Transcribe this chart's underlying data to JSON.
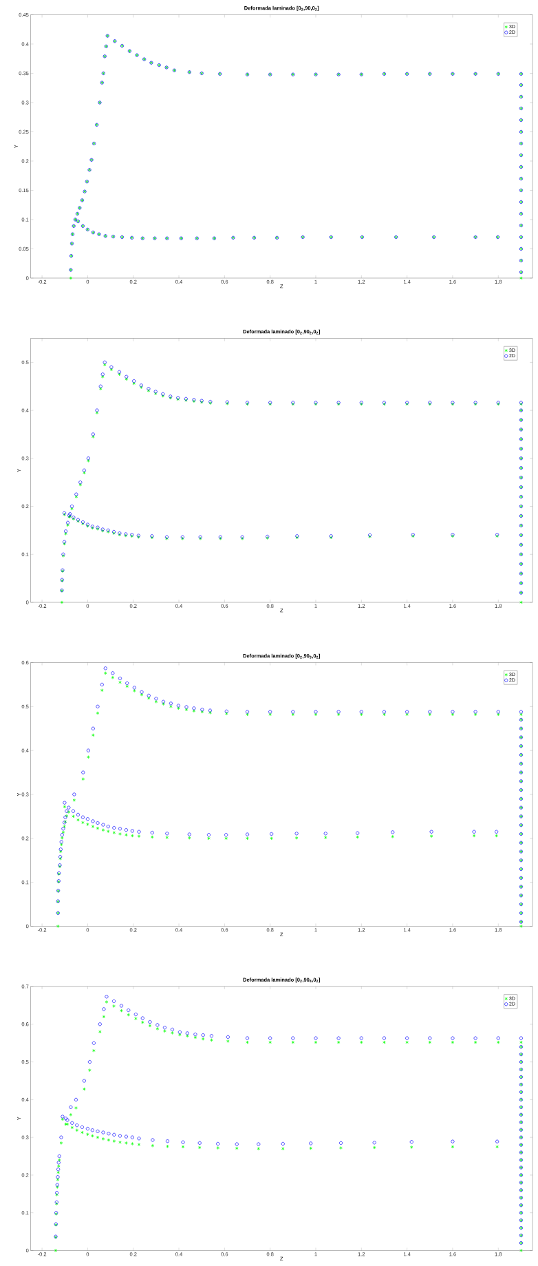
{
  "chart_data": [
    {
      "type": "scatter",
      "title": "Deformada laminado [0$_{2}$,90,0$_{2}$]",
      "xlabel": "Z",
      "ylabel": "Y",
      "legend": "top right",
      "xlim": [
        -0.25,
        1.95
      ],
      "ylim": [
        0,
        0.45
      ],
      "xticks": [
        -0.2,
        0,
        0.2,
        0.4,
        0.6,
        0.8,
        1,
        1.2,
        1.4,
        1.6,
        1.8
      ],
      "yticks": [
        0,
        0.05,
        0.1,
        0.15,
        0.2,
        0.25,
        0.3,
        0.35,
        0.4,
        0.45
      ],
      "x": [
        -0.074,
        -0.074,
        -0.072,
        -0.069,
        -0.066,
        -0.061,
        -0.054,
        -0.045,
        -0.035,
        -0.024,
        -0.013,
        -0.003,
        0.008,
        0.017,
        0.028,
        0.04,
        0.053,
        0.063,
        0.069,
        0.075,
        0.081,
        0.087,
        0.119,
        0.151,
        0.184,
        0.216,
        0.248,
        0.279,
        0.313,
        0.346,
        0.38,
        0.446,
        0.5,
        0.58,
        0.7,
        0.8,
        0.9,
        1,
        1.1,
        1.2,
        1.3,
        1.4,
        1.5,
        1.6,
        1.7,
        1.8,
        1.9,
        1.9,
        1.9,
        1.9,
        1.9,
        1.9,
        1.9,
        1.9,
        1.9,
        1.9,
        1.9,
        1.9,
        1.9,
        1.9,
        1.9,
        1.9,
        1.9,
        1.9,
        1.9,
        -0.042,
        -0.021,
        0,
        0.024,
        0.05,
        0.078,
        0.112,
        0.151,
        0.194,
        0.241,
        0.294,
        0.348,
        0.41,
        0.479,
        0.555,
        0.638,
        0.73,
        0.83,
        0.943,
        1.067,
        1.203,
        1.352,
        1.518,
        1.7,
        1.798
      ],
      "series": [
        {
          "name": "3D",
          "color": "#00ff00",
          "marker": "cross",
          "values": [
            0,
            0.014,
            0.038,
            0.059,
            0.075,
            0.089,
            0.1,
            0.11,
            0.12,
            0.133,
            0.148,
            0.165,
            0.185,
            0.202,
            0.23,
            0.262,
            0.3,
            0.334,
            0.35,
            0.379,
            0.396,
            0.414,
            0.405,
            0.397,
            0.388,
            0.381,
            0.374,
            0.368,
            0.364,
            0.36,
            0.355,
            0.352,
            0.35,
            0.349,
            0.348,
            0.348,
            0.348,
            0.348,
            0.348,
            0.348,
            0.349,
            0.349,
            0.349,
            0.349,
            0.349,
            0.349,
            0.349,
            0.33,
            0.31,
            0.29,
            0.27,
            0.25,
            0.23,
            0.21,
            0.19,
            0.17,
            0.15,
            0.13,
            0.11,
            0.09,
            0.07,
            0.05,
            0.03,
            0.01,
            0,
            0.097,
            0.089,
            0.083,
            0.078,
            0.075,
            0.072,
            0.071,
            0.07,
            0.069,
            0.068,
            0.068,
            0.068,
            0.068,
            0.068,
            0.068,
            0.069,
            0.069,
            0.069,
            0.07,
            0.07,
            0.07,
            0.07,
            0.07,
            0.07,
            0.07
          ]
        },
        {
          "name": "2D",
          "color": "#0000ff",
          "marker": "circle",
          "values": [
            null,
            0.014,
            0.038,
            0.059,
            0.075,
            0.089,
            0.1,
            0.11,
            0.12,
            0.133,
            0.148,
            0.165,
            0.185,
            0.202,
            0.23,
            0.262,
            0.3,
            0.334,
            0.35,
            0.379,
            0.396,
            0.414,
            0.405,
            0.397,
            0.388,
            0.381,
            0.374,
            0.368,
            0.364,
            0.36,
            0.355,
            0.352,
            0.35,
            0.349,
            0.348,
            0.348,
            0.348,
            0.348,
            0.348,
            0.348,
            0.349,
            0.349,
            0.349,
            0.349,
            0.349,
            0.349,
            0.349,
            0.33,
            0.31,
            0.29,
            0.27,
            0.25,
            0.23,
            0.21,
            0.19,
            0.17,
            0.15,
            0.13,
            0.11,
            0.09,
            0.07,
            0.05,
            0.03,
            0.01,
            null,
            0.097,
            0.089,
            0.083,
            0.078,
            0.075,
            0.072,
            0.071,
            0.07,
            0.069,
            0.068,
            0.068,
            0.068,
            0.068,
            0.068,
            0.068,
            0.069,
            0.069,
            0.069,
            0.07,
            0.07,
            0.07,
            0.07,
            0.07,
            0.07,
            0.07
          ]
        }
      ]
    },
    {
      "type": "scatter",
      "title": "Deformada laminado [0$_{2}$,90$_{2}$,0$_{2}$]",
      "xlabel": "Z",
      "ylabel": "Y",
      "legend": "top right",
      "xlim": [
        -0.25,
        1.95
      ],
      "ylim": [
        0,
        0.55
      ],
      "xticks": [
        -0.2,
        0,
        0.2,
        0.4,
        0.6,
        0.8,
        1,
        1.2,
        1.4,
        1.6,
        1.8
      ],
      "yticks": [
        0,
        0.1,
        0.2,
        0.3,
        0.4,
        0.5
      ],
      "x": [
        -0.113,
        -0.113,
        -0.112,
        -0.11,
        -0.107,
        -0.102,
        -0.096,
        -0.087,
        -0.077,
        -0.069,
        -0.05,
        -0.032,
        -0.015,
        0.003,
        0.024,
        0.041,
        0.057,
        0.066,
        0.075,
        0.104,
        0.139,
        0.17,
        0.203,
        0.235,
        0.267,
        0.298,
        0.33,
        0.363,
        0.396,
        0.431,
        0.466,
        0.5,
        0.538,
        0.612,
        0.7,
        0.8,
        0.9,
        1,
        1.1,
        1.2,
        1.3,
        1.4,
        1.5,
        1.6,
        1.7,
        1.8,
        1.9,
        1.9,
        1.9,
        1.9,
        1.9,
        1.9,
        1.9,
        1.9,
        1.9,
        1.9,
        1.9,
        1.9,
        1.9,
        1.9,
        1.9,
        1.9,
        1.9,
        1.9,
        1.9,
        1.9,
        1.9,
        1.9,
        -0.102,
        -0.081,
        -0.062,
        -0.042,
        -0.021,
        0,
        0.021,
        0.044,
        0.066,
        0.09,
        0.115,
        0.14,
        0.167,
        0.194,
        0.223,
        0.282,
        0.347,
        0.416,
        0.494,
        0.582,
        0.678,
        0.788,
        0.918,
        1.067,
        1.237,
        1.426,
        1.6,
        1.795
      ],
      "series": [
        {
          "name": "3D",
          "color": "#00ff00",
          "marker": "cross",
          "values": [
            0,
            0.024,
            0.045,
            0.065,
            0.097,
            0.122,
            0.143,
            0.161,
            0.179,
            0.195,
            0.22,
            0.245,
            0.27,
            0.295,
            0.345,
            0.395,
            0.445,
            0.47,
            0.495,
            0.485,
            0.475,
            0.465,
            0.456,
            0.448,
            0.441,
            0.435,
            0.43,
            0.426,
            0.423,
            0.421,
            0.419,
            0.417,
            0.415,
            0.414,
            0.413,
            0.413,
            0.413,
            0.413,
            0.413,
            0.413,
            0.413,
            0.413,
            0.413,
            0.413,
            0.413,
            0.413,
            0.413,
            0.4,
            0.38,
            0.36,
            0.34,
            0.32,
            0.3,
            0.28,
            0.26,
            0.24,
            0.22,
            0.2,
            0.18,
            0.16,
            0.14,
            0.12,
            0.1,
            0.08,
            0.06,
            0.04,
            0.02,
            0,
            0.183,
            0.178,
            0.174,
            0.169,
            0.164,
            0.159,
            0.155,
            0.153,
            0.149,
            0.147,
            0.144,
            0.141,
            0.139,
            0.138,
            0.136,
            0.135,
            0.133,
            0.133,
            0.133,
            0.133,
            0.133,
            0.134,
            0.135,
            0.135,
            0.137,
            0.138,
            0.138,
            0.138
          ]
        },
        {
          "name": "2D",
          "color": "#0000ff",
          "marker": "circle",
          "values": [
            null,
            0.025,
            0.047,
            0.067,
            0.1,
            0.126,
            0.148,
            0.166,
            0.184,
            0.2,
            0.225,
            0.25,
            0.275,
            0.3,
            0.35,
            0.4,
            0.45,
            0.475,
            0.5,
            0.49,
            0.48,
            0.47,
            0.461,
            0.452,
            0.445,
            0.439,
            0.434,
            0.429,
            0.426,
            0.424,
            0.422,
            0.42,
            0.418,
            0.417,
            0.416,
            0.416,
            0.416,
            0.416,
            0.416,
            0.416,
            0.416,
            0.416,
            0.416,
            0.416,
            0.416,
            0.416,
            0.416,
            0.4,
            0.38,
            0.36,
            0.34,
            0.32,
            0.3,
            0.28,
            0.26,
            0.24,
            0.22,
            0.2,
            0.18,
            0.16,
            0.14,
            0.12,
            0.1,
            0.08,
            0.06,
            0.04,
            0.02,
            null,
            0.186,
            0.181,
            0.177,
            0.172,
            0.167,
            0.162,
            0.158,
            0.156,
            0.152,
            0.15,
            0.147,
            0.144,
            0.142,
            0.141,
            0.139,
            0.138,
            0.136,
            0.136,
            0.136,
            0.136,
            0.136,
            0.137,
            0.138,
            0.138,
            0.14,
            0.141,
            0.141,
            0.141
          ]
        }
      ]
    },
    {
      "type": "scatter",
      "title": "Deformada laminado [0$_{2}$,90$_{3}$,0$_{2}$]",
      "xlabel": "Z",
      "ylabel": "Y",
      "legend": "top right",
      "xlim": [
        -0.25,
        1.95
      ],
      "ylim": [
        0,
        0.6
      ],
      "xticks": [
        -0.2,
        0,
        0.2,
        0.4,
        0.6,
        0.8,
        1,
        1.2,
        1.4,
        1.6,
        1.8
      ],
      "yticks": [
        0,
        0.1,
        0.2,
        0.3,
        0.4,
        0.5,
        0.6
      ],
      "x": [
        -0.13,
        -0.13,
        -0.13,
        -0.129,
        -0.127,
        -0.126,
        -0.122,
        -0.12,
        -0.118,
        -0.115,
        -0.112,
        -0.107,
        -0.102,
        -0.098,
        -0.092,
        -0.059,
        -0.02,
        0.003,
        0.024,
        0.044,
        0.063,
        0.078,
        0.11,
        0.142,
        0.173,
        0.205,
        0.237,
        0.268,
        0.3,
        0.332,
        0.365,
        0.398,
        0.433,
        0.466,
        0.502,
        0.537,
        0.609,
        0.7,
        0.8,
        0.9,
        1,
        1.1,
        1.2,
        1.3,
        1.4,
        1.5,
        1.6,
        1.7,
        1.8,
        1.9,
        1.9,
        1.9,
        1.9,
        1.9,
        1.9,
        1.9,
        1.9,
        1.9,
        1.9,
        1.9,
        1.9,
        1.9,
        1.9,
        1.9,
        1.9,
        1.9,
        1.9,
        1.9,
        1.9,
        1.9,
        1.9,
        1.9,
        1.9,
        1.9,
        1.9,
        -0.101,
        -0.083,
        -0.063,
        -0.042,
        -0.021,
        0,
        0.023,
        0.044,
        0.068,
        0.09,
        0.116,
        0.142,
        0.169,
        0.196,
        0.225,
        0.283,
        0.348,
        0.446,
        0.531,
        0.607,
        0.7,
        0.806,
        0.916,
        1.043,
        1.183,
        1.337,
        1.507,
        1.694,
        1.792
      ],
      "series": [
        {
          "name": "3D",
          "color": "#00ff00",
          "marker": "cross",
          "values": [
            0,
            0.03,
            0.056,
            0.08,
            0.101,
            0.119,
            0.136,
            0.154,
            0.17,
            0.186,
            0.201,
            0.214,
            0.227,
            0.238,
            0.251,
            0.287,
            0.335,
            0.385,
            0.435,
            0.485,
            0.537,
            0.576,
            0.566,
            0.555,
            0.546,
            0.536,
            0.527,
            0.519,
            0.511,
            0.506,
            0.5,
            0.496,
            0.493,
            0.49,
            0.488,
            0.486,
            0.484,
            0.482,
            0.482,
            0.482,
            0.482,
            0.482,
            0.482,
            0.482,
            0.482,
            0.482,
            0.482,
            0.482,
            0.482,
            0.482,
            0.47,
            0.45,
            0.43,
            0.41,
            0.39,
            0.37,
            0.35,
            0.33,
            0.31,
            0.29,
            0.27,
            0.25,
            0.23,
            0.21,
            0.19,
            0.17,
            0.15,
            0.13,
            0.11,
            0.09,
            0.07,
            0.05,
            0.03,
            0.01,
            0,
            0.272,
            0.26,
            0.25,
            0.242,
            0.236,
            0.232,
            0.227,
            0.223,
            0.219,
            0.216,
            0.213,
            0.21,
            0.208,
            0.206,
            0.205,
            0.203,
            0.202,
            0.201,
            0.2,
            0.2,
            0.2,
            0.2,
            0.201,
            0.202,
            0.203,
            0.204,
            0.205,
            0.206,
            0.206
          ]
        },
        {
          "name": "2D",
          "color": "#0000ff",
          "marker": "circle",
          "values": [
            null,
            0.03,
            0.057,
            0.081,
            0.103,
            0.121,
            0.139,
            0.158,
            0.175,
            0.192,
            0.208,
            0.222,
            0.236,
            0.248,
            0.262,
            0.3,
            0.35,
            0.4,
            0.45,
            0.5,
            0.55,
            0.587,
            0.576,
            0.564,
            0.553,
            0.543,
            0.533,
            0.525,
            0.518,
            0.511,
            0.507,
            0.502,
            0.499,
            0.496,
            0.493,
            0.491,
            0.489,
            0.488,
            0.488,
            0.488,
            0.488,
            0.488,
            0.488,
            0.488,
            0.488,
            0.488,
            0.488,
            0.488,
            0.488,
            0.488,
            0.47,
            0.45,
            0.43,
            0.41,
            0.39,
            0.37,
            0.35,
            0.33,
            0.31,
            0.29,
            0.27,
            0.25,
            0.23,
            0.21,
            0.19,
            0.17,
            0.15,
            0.13,
            0.11,
            0.09,
            0.07,
            0.05,
            0.03,
            0.01,
            null,
            0.281,
            0.27,
            0.262,
            0.254,
            0.248,
            0.244,
            0.239,
            0.235,
            0.231,
            0.227,
            0.224,
            0.222,
            0.219,
            0.217,
            0.215,
            0.213,
            0.211,
            0.209,
            0.208,
            0.208,
            0.209,
            0.21,
            0.211,
            0.211,
            0.212,
            0.214,
            0.215,
            0.215,
            0.215
          ]
        }
      ]
    },
    {
      "type": "scatter",
      "title": "Deformada laminado [0$_{2}$,90$_{4}$,0$_{2}$]",
      "xlabel": "Z",
      "ylabel": "Y",
      "legend": "top right",
      "xlim": [
        -0.25,
        1.95
      ],
      "ylim": [
        0,
        0.7
      ],
      "xticks": [
        -0.2,
        0,
        0.2,
        0.4,
        0.6,
        0.8,
        1,
        1.2,
        1.4,
        1.6,
        1.8
      ],
      "yticks": [
        0,
        0.1,
        0.2,
        0.3,
        0.4,
        0.5,
        0.6,
        0.7
      ],
      "x": [
        -0.14,
        -0.14,
        -0.139,
        -0.138,
        -0.136,
        -0.135,
        -0.133,
        -0.131,
        -0.129,
        -0.127,
        -0.124,
        -0.116,
        -0.096,
        -0.074,
        -0.051,
        -0.015,
        0.009,
        0.027,
        0.054,
        0.071,
        0.083,
        0.115,
        0.148,
        0.179,
        0.211,
        0.241,
        0.273,
        0.306,
        0.338,
        0.371,
        0.404,
        0.437,
        0.472,
        0.506,
        0.543,
        0.615,
        0.7,
        0.8,
        0.9,
        1,
        1.1,
        1.2,
        1.3,
        1.4,
        1.5,
        1.6,
        1.7,
        1.8,
        1.9,
        1.9,
        1.9,
        1.9,
        1.9,
        1.9,
        1.9,
        1.9,
        1.9,
        1.9,
        1.9,
        1.9,
        1.9,
        1.9,
        1.9,
        1.9,
        1.9,
        1.9,
        1.9,
        1.9,
        1.9,
        1.9,
        1.9,
        1.9,
        1.9,
        1.9,
        1.9,
        1.9,
        1.9,
        -0.11,
        -0.089,
        -0.068,
        -0.047,
        -0.024,
        0,
        0.021,
        0.044,
        0.068,
        0.092,
        0.116,
        0.142,
        0.169,
        0.196,
        0.225,
        0.285,
        0.35,
        0.418,
        0.491,
        0.571,
        0.654,
        0.749,
        0.856,
        0.978,
        1.11,
        1.257,
        1.42,
        1.6,
        1.795
      ],
      "series": [
        {
          "name": "3D",
          "color": "#00ff00",
          "marker": "cross",
          "values": [
            0,
            0.035,
            0.068,
            0.097,
            0.124,
            0.148,
            0.168,
            0.188,
            0.207,
            0.224,
            0.24,
            0.285,
            0.335,
            0.36,
            0.378,
            0.428,
            0.478,
            0.53,
            0.58,
            0.62,
            0.659,
            0.648,
            0.636,
            0.625,
            0.615,
            0.605,
            0.596,
            0.588,
            0.582,
            0.577,
            0.572,
            0.569,
            0.565,
            0.561,
            0.558,
            0.555,
            0.552,
            0.552,
            0.552,
            0.552,
            0.552,
            0.552,
            0.552,
            0.552,
            0.552,
            0.552,
            0.552,
            0.552,
            0.552,
            0.54,
            0.52,
            0.5,
            0.48,
            0.46,
            0.44,
            0.42,
            0.4,
            0.38,
            0.36,
            0.34,
            0.32,
            0.3,
            0.28,
            0.26,
            0.24,
            0.22,
            0.2,
            0.18,
            0.16,
            0.14,
            0.12,
            0.1,
            0.08,
            0.06,
            0.04,
            0.02,
            0,
            0.348,
            0.335,
            0.326,
            0.319,
            0.313,
            0.308,
            0.304,
            0.3,
            0.296,
            0.293,
            0.29,
            0.287,
            0.285,
            0.283,
            0.281,
            0.278,
            0.276,
            0.275,
            0.273,
            0.272,
            0.271,
            0.27,
            0.27,
            0.271,
            0.272,
            0.273,
            0.274,
            0.275,
            0.275
          ]
        },
        {
          "name": "2D",
          "color": "#0000ff",
          "marker": "circle",
          "values": [
            null,
            0.037,
            0.07,
            0.1,
            0.128,
            0.153,
            0.174,
            0.195,
            0.215,
            0.233,
            0.25,
            0.3,
            0.35,
            0.38,
            0.4,
            0.45,
            0.5,
            0.55,
            0.6,
            0.64,
            0.673,
            0.661,
            0.649,
            0.637,
            0.626,
            0.616,
            0.606,
            0.598,
            0.591,
            0.586,
            0.579,
            0.576,
            0.573,
            0.571,
            0.569,
            0.566,
            0.563,
            0.563,
            0.563,
            0.563,
            0.563,
            0.563,
            0.563,
            0.563,
            0.563,
            0.563,
            0.563,
            0.563,
            0.563,
            0.54,
            0.52,
            0.5,
            0.48,
            0.46,
            0.44,
            0.42,
            0.4,
            0.38,
            0.36,
            0.34,
            0.32,
            0.3,
            0.28,
            0.26,
            0.24,
            0.22,
            0.2,
            0.18,
            0.16,
            0.14,
            0.12,
            0.1,
            0.08,
            0.06,
            0.04,
            0.02,
            null,
            0.355,
            0.346,
            0.338,
            0.332,
            0.327,
            0.323,
            0.319,
            0.316,
            0.313,
            0.31,
            0.307,
            0.304,
            0.302,
            0.3,
            0.297,
            0.293,
            0.29,
            0.287,
            0.285,
            0.283,
            0.282,
            0.282,
            0.283,
            0.284,
            0.285,
            0.286,
            0.288,
            0.289,
            0.289
          ]
        }
      ]
    }
  ]
}
